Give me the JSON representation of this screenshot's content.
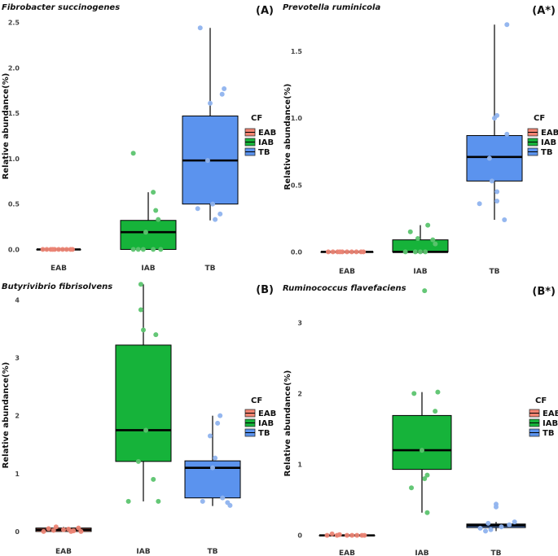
{
  "legend": {
    "title": "CF",
    "groups": [
      "EAB",
      "IAB",
      "TB"
    ]
  },
  "colors": {
    "EAB": "#f28472",
    "IAB": "#16b33a",
    "TB": "#5b93ee"
  },
  "point_colors": {
    "EAB": "#ec8575",
    "IAB": "#5cc46f",
    "TB": "#8fb3ee"
  },
  "chart_data": [
    {
      "id": "A",
      "type": "box",
      "title": "Fibrobacter succinogenes",
      "letter": "(A)",
      "ylabel": "Relative abundance(%)",
      "categories": [
        "EAB",
        "IAB",
        "TB"
      ],
      "ylim": [
        -0.05,
        2.55
      ],
      "yticks": [
        0.0,
        0.5,
        1.0,
        1.5,
        2.0,
        2.5
      ],
      "ytick_labels": [
        "0.0",
        "0.5",
        "1.0",
        "1.5",
        "2.0",
        "2.5"
      ],
      "boxes": [
        {
          "q1": 0.0,
          "median": 0.0,
          "q3": 0.0,
          "wlo": 0.0,
          "whi": 0.0,
          "points": [
            0,
            0,
            0,
            0,
            0,
            0,
            0,
            0,
            0,
            0
          ],
          "jit": [
            -0.4,
            -0.3,
            -0.2,
            -0.1,
            0,
            0.1,
            0.2,
            0.3,
            0.35,
            -0.15
          ]
        },
        {
          "q1": 0.0,
          "median": 0.19,
          "q3": 0.32,
          "wlo": 0.0,
          "whi": 0.63,
          "points": [
            1.06,
            0.63,
            0.43,
            0.33,
            0.19,
            0,
            0,
            0,
            0,
            0
          ],
          "jit": [
            -0.3,
            0.1,
            0.15,
            0.2,
            -0.05,
            -0.3,
            -0.1,
            0.1,
            0.25,
            -0.2
          ]
        },
        {
          "q1": 0.5,
          "median": 0.98,
          "q3": 1.47,
          "wlo": 0.32,
          "whi": 2.44,
          "points": [
            2.44,
            1.77,
            1.71,
            1.61,
            0.98,
            0.5,
            0.45,
            0.39,
            0.33
          ],
          "jit": [
            -0.2,
            0.28,
            0.24,
            0.0,
            -0.05,
            0.05,
            -0.25,
            0.2,
            0.1
          ]
        }
      ]
    },
    {
      "id": "A*",
      "type": "box",
      "title": "Prevotella ruminicola",
      "letter": "(A*)",
      "ylabel": "Relative abundance(%)",
      "categories": [
        "EAB",
        "IAB",
        "TB"
      ],
      "ylim": [
        -0.04,
        1.75
      ],
      "yticks": [
        0.0,
        0.5,
        1.0,
        1.5
      ],
      "ytick_labels": [
        "0.0",
        "0.5",
        "1.0",
        "1.5"
      ],
      "boxes": [
        {
          "q1": 0.0,
          "median": 0.0,
          "q3": 0.0,
          "wlo": 0.0,
          "whi": 0.0,
          "points": [
            0,
            0,
            0,
            0,
            0,
            0,
            0,
            0,
            0,
            0
          ],
          "jit": [
            -0.4,
            -0.3,
            -0.2,
            -0.1,
            0,
            0.1,
            0.2,
            0.3,
            0.35,
            -0.15
          ]
        },
        {
          "q1": 0.0,
          "median": 0.0,
          "q3": 0.09,
          "wlo": 0.0,
          "whi": 0.2,
          "points": [
            0.2,
            0.15,
            0.1,
            0.09,
            0.06,
            0.0,
            0.0,
            0.0,
            0.0
          ],
          "jit": [
            0.15,
            -0.2,
            -0.05,
            0.25,
            0.3,
            -0.3,
            0.0,
            0.1,
            -0.1
          ]
        },
        {
          "q1": 0.53,
          "median": 0.71,
          "q3": 0.87,
          "wlo": 0.24,
          "whi": 1.7,
          "points": [
            1.7,
            1.02,
            1.0,
            0.88,
            0.7,
            0.53,
            0.45,
            0.38,
            0.36,
            0.24
          ],
          "jit": [
            0.25,
            0.05,
            0.0,
            0.25,
            -0.1,
            -0.05,
            0.05,
            0.05,
            -0.3,
            0.2
          ]
        }
      ]
    },
    {
      "id": "B",
      "type": "box",
      "title": "Butyrivibrio fibrisolvens",
      "letter": "(B)",
      "ylabel": "Relative abundance(%)",
      "categories": [
        "EAB",
        "IAB",
        "TB"
      ],
      "ylim": [
        -0.1,
        4.4
      ],
      "yticks": [
        0,
        1,
        2,
        3,
        4
      ],
      "ytick_labels": [
        "0",
        "1",
        "2",
        "3",
        "4"
      ],
      "boxes": [
        {
          "q1": 0.0,
          "median": 0.03,
          "q3": 0.06,
          "wlo": 0.0,
          "whi": 0.08,
          "points": [
            0.08,
            0.06,
            0.05,
            0.04,
            0.03,
            0.02,
            0.01,
            0.0,
            0.0,
            0.0
          ],
          "jit": [
            -0.15,
            0.3,
            -0.3,
            0.1,
            0.0,
            -0.2,
            0.2,
            0.35,
            -0.4,
            0.15
          ]
        },
        {
          "q1": 1.21,
          "median": 1.75,
          "q3": 3.22,
          "wlo": 0.52,
          "whi": 4.27,
          "points": [
            4.27,
            3.83,
            3.48,
            3.4,
            1.75,
            1.21,
            0.9,
            0.52,
            0.52
          ],
          "jit": [
            -0.05,
            -0.05,
            0.0,
            0.25,
            0.05,
            -0.1,
            0.2,
            -0.3,
            0.3
          ]
        },
        {
          "q1": 0.58,
          "median": 1.1,
          "q3": 1.22,
          "wlo": 0.44,
          "whi": 2.0,
          "points": [
            2.0,
            1.87,
            1.65,
            1.27,
            1.1,
            0.58,
            0.52,
            0.5,
            0.45
          ],
          "jit": [
            0.15,
            0.1,
            -0.05,
            0.05,
            0.0,
            0.2,
            -0.2,
            0.3,
            0.35
          ]
        }
      ]
    },
    {
      "id": "B*",
      "type": "box",
      "title": "Ruminococcus flavefaciens",
      "letter": "(B*)",
      "ylabel": "Relative abundance(%)",
      "categories": [
        "EAB",
        "IAB",
        "TB"
      ],
      "ylim": [
        -0.05,
        3.6
      ],
      "yticks": [
        0,
        1,
        2,
        3
      ],
      "ytick_labels": [
        "0",
        "1",
        "2",
        "3"
      ],
      "boxes": [
        {
          "q1": 0.0,
          "median": 0.0,
          "q3": 0.0,
          "wlo": 0.0,
          "whi": 0.02,
          "points": [
            0.02,
            0.01,
            0.0,
            0.0,
            0.0,
            0.0,
            0.0,
            0.0,
            0.0
          ],
          "jit": [
            -0.3,
            -0.15,
            0.0,
            0.1,
            0.2,
            0.3,
            -0.4,
            0.35,
            -0.2
          ]
        },
        {
          "q1": 0.93,
          "median": 1.2,
          "q3": 1.69,
          "wlo": 0.32,
          "whi": 2.02,
          "points": [
            3.45,
            2.02,
            2.0,
            1.75,
            1.2,
            0.85,
            0.8,
            0.67,
            0.32
          ],
          "jit": [
            0.05,
            0.3,
            -0.15,
            0.25,
            0.0,
            0.1,
            0.05,
            -0.2,
            0.1
          ]
        },
        {
          "q1": 0.11,
          "median": 0.14,
          "q3": 0.16,
          "wlo": 0.06,
          "whi": 0.19,
          "points": [
            0.44,
            0.4,
            0.19,
            0.17,
            0.15,
            0.12,
            0.1,
            0.08,
            0.06
          ],
          "jit": [
            0.0,
            0.0,
            0.35,
            -0.15,
            0.25,
            0.1,
            -0.3,
            -0.1,
            -0.2
          ]
        }
      ]
    }
  ]
}
